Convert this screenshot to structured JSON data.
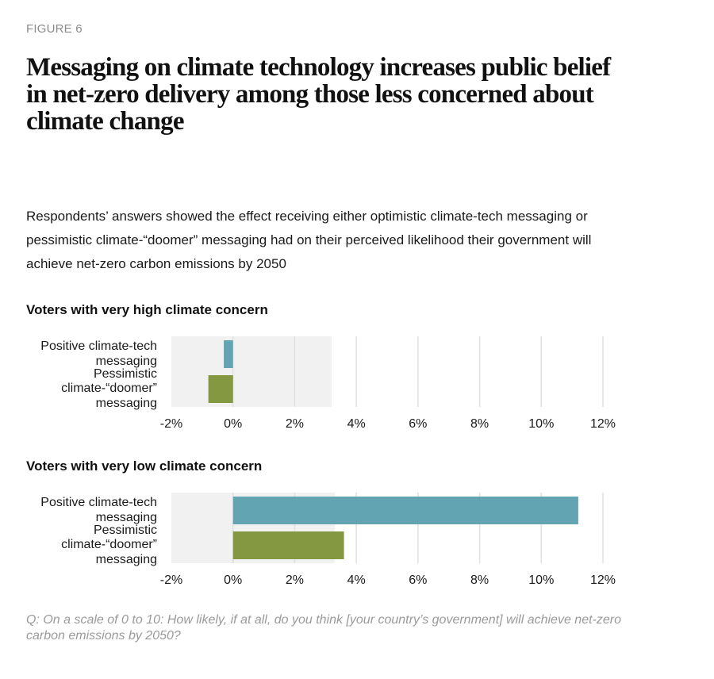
{
  "figure_label": "FIGURE 6",
  "title": "Messaging on climate technology increases public belief in net-zero delivery among those less concerned about climate change",
  "subtitle": "Respondents’ answers showed the effect receiving either optimistic climate-tech messaging or pessimistic climate-“doomer” messaging had on their perceived likelihood their government will achieve net-zero carbon emissions by 2050",
  "footnote": "Q: On a scale of 0 to 10: How likely, if at all, do you think [your country’s government] will achieve net-zero carbon emissions by 2050?",
  "colors": {
    "positive": "#5b9fae",
    "pessimistic": "#7d9237",
    "band": "#f1f1f1",
    "grid": "#e0e0e0"
  },
  "chart_data": [
    {
      "type": "bar",
      "orientation": "horizontal",
      "title": "Voters with very high climate concern",
      "categories": [
        [
          "Positive climate-tech",
          "messaging"
        ],
        [
          "Pessimistic",
          "climate-“doomer”",
          "messaging"
        ]
      ],
      "values": [
        -0.3,
        -0.8
      ],
      "xlim": [
        -2,
        12
      ],
      "ticks": [
        "-2%",
        "0%",
        "2%",
        "4%",
        "6%",
        "8%",
        "10%",
        "12%"
      ],
      "tick_values": [
        -2,
        0,
        2,
        4,
        6,
        8,
        10,
        12
      ],
      "shaded_range": [
        -2,
        3.2
      ],
      "grid": true
    },
    {
      "type": "bar",
      "orientation": "horizontal",
      "title": "Voters with very low climate concern",
      "categories": [
        [
          "Positive climate-tech",
          "messaging"
        ],
        [
          "Pessimistic",
          "climate-“doomer”",
          "messaging"
        ]
      ],
      "values": [
        11.2,
        3.6
      ],
      "xlim": [
        -2,
        12
      ],
      "ticks": [
        "-2%",
        "0%",
        "2%",
        "4%",
        "6%",
        "8%",
        "10%",
        "12%"
      ],
      "tick_values": [
        -2,
        0,
        2,
        4,
        6,
        8,
        10,
        12
      ],
      "shaded_range": [
        -2,
        3.3
      ],
      "grid": true
    }
  ]
}
